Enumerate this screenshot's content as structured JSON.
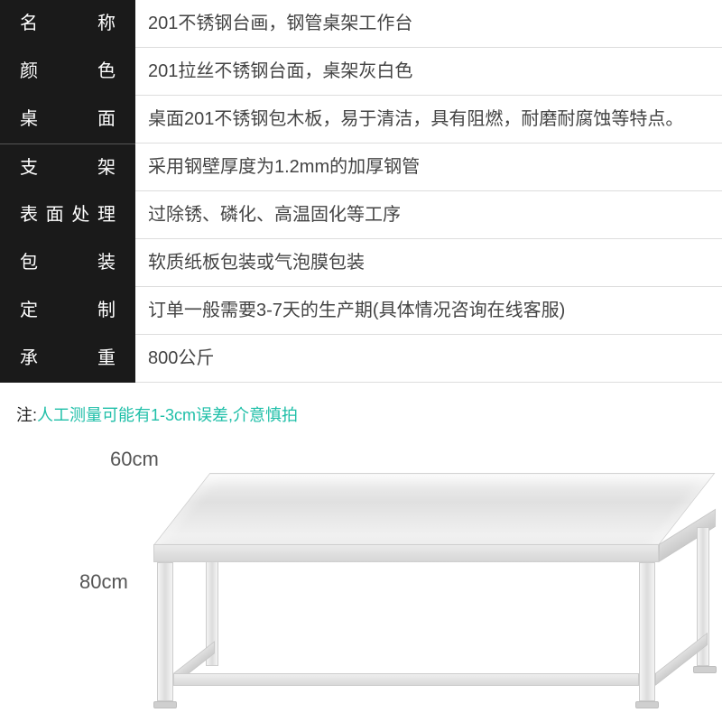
{
  "specs": [
    {
      "label": "名　　称",
      "value": "201不锈钢台画，钢管桌架工作台"
    },
    {
      "label": "颜　　色",
      "value": "201拉丝不锈钢台面，桌架灰白色"
    },
    {
      "label": "桌　　面",
      "value": "桌面201不锈钢包木板，易于清洁，具有阻燃，耐磨耐腐蚀等特点。"
    },
    {
      "label": "支　　架",
      "value": "采用钢壁厚度为1.2mm的加厚钢管"
    },
    {
      "label": "表面处理",
      "value": "过除锈、磷化、高温固化等工序"
    },
    {
      "label": "包　　装",
      "value": "软质纸板包装或气泡膜包装"
    },
    {
      "label": "定　　制",
      "value": "订单一般需要3-7天的生产期(具体情况咨询在线客服)"
    },
    {
      "label": "承　　重",
      "value": "800公斤"
    }
  ],
  "note": {
    "label": "注:",
    "text": "人工测量可能有1-3cm误差,介意慎拍"
  },
  "diagram": {
    "depth_label": "60cm",
    "height_label": "80cm",
    "colors": {
      "label_bg": "#1a1a1a",
      "label_fg": "#ffffff",
      "value_fg": "#444444",
      "divider": "#dddddd",
      "note_accent": "#1fbfa8",
      "steel_light": "#f0f0f0",
      "steel_dark": "#d6d6d6"
    }
  }
}
